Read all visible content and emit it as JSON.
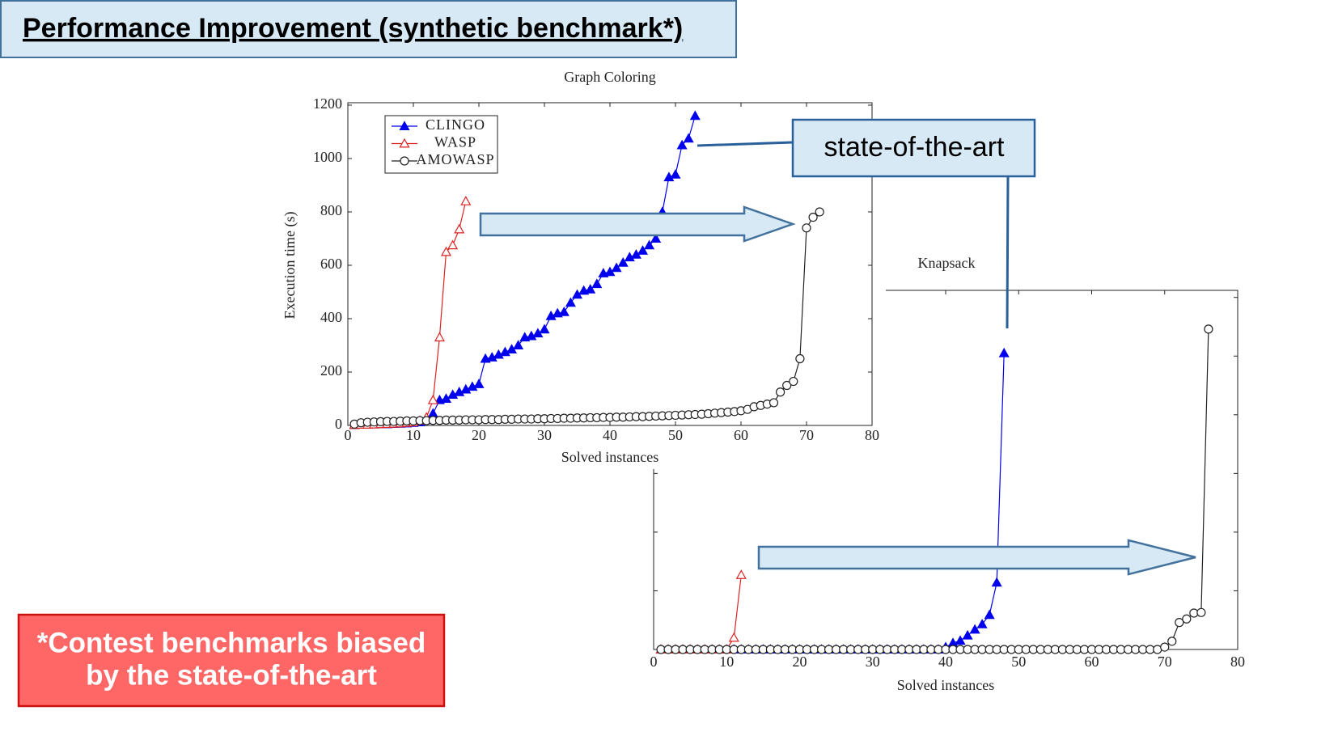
{
  "header": "Performance Improvement (synthetic benchmark*)",
  "callout": "state-of-the-art",
  "note": [
    "*Contest benchmarks biased",
    "by the state-of-the-art"
  ],
  "chart_data": [
    {
      "type": "line",
      "title": "Graph Coloring",
      "xlabel": "Solved instances",
      "ylabel": "Execution time (s)",
      "xlim": [
        0,
        80
      ],
      "xticks": [
        0,
        10,
        20,
        30,
        40,
        50,
        60,
        70,
        80
      ],
      "ylim": [
        0,
        1200
      ],
      "yticks": [
        0,
        200,
        400,
        600,
        800,
        1000,
        1200
      ],
      "legend": "upper left",
      "ytick_labels": true,
      "series": [
        {
          "name": "CLINGO",
          "color": "#0000ee",
          "marker": "triangle-filled",
          "x": [
            1,
            2,
            3,
            4,
            5,
            6,
            7,
            8,
            9,
            10,
            11,
            12,
            13,
            14,
            15,
            16,
            17,
            18,
            19,
            20,
            21,
            22,
            23,
            24,
            25,
            26,
            27,
            28,
            29,
            30,
            31,
            32,
            33,
            34,
            35,
            36,
            37,
            38,
            39,
            40,
            41,
            42,
            43,
            44,
            45,
            46,
            47,
            48,
            49,
            50,
            51,
            52,
            53
          ],
          "values": [
            2,
            3,
            3,
            4,
            5,
            5,
            6,
            7,
            8,
            10,
            12,
            20,
            45,
            95,
            100,
            115,
            125,
            135,
            145,
            155,
            250,
            255,
            265,
            275,
            285,
            300,
            330,
            335,
            345,
            360,
            410,
            420,
            425,
            460,
            490,
            505,
            510,
            530,
            570,
            575,
            590,
            610,
            630,
            640,
            655,
            675,
            700,
            800,
            930,
            940,
            1050,
            1075,
            1160
          ]
        },
        {
          "name": "WASP",
          "color": "#dd2222",
          "marker": "triangle-open",
          "x": [
            1,
            2,
            3,
            4,
            5,
            6,
            7,
            8,
            9,
            10,
            11,
            12,
            13,
            14,
            15,
            16,
            17,
            18
          ],
          "values": [
            2,
            3,
            3,
            4,
            5,
            6,
            7,
            8,
            10,
            12,
            18,
            30,
            95,
            330,
            650,
            675,
            735,
            840
          ]
        },
        {
          "name": "AMOWASP",
          "color": "#222222",
          "marker": "circle-open",
          "x": [
            1,
            2,
            3,
            4,
            5,
            6,
            7,
            8,
            9,
            10,
            11,
            12,
            13,
            14,
            15,
            16,
            17,
            18,
            19,
            20,
            21,
            22,
            23,
            24,
            25,
            26,
            27,
            28,
            29,
            30,
            31,
            32,
            33,
            34,
            35,
            36,
            37,
            38,
            39,
            40,
            41,
            42,
            43,
            44,
            45,
            46,
            47,
            48,
            49,
            50,
            51,
            52,
            53,
            54,
            55,
            56,
            57,
            58,
            59,
            60,
            61,
            62,
            63,
            64,
            65,
            66,
            67,
            68,
            69,
            70,
            71,
            72
          ],
          "values": [
            5,
            10,
            12,
            13,
            14,
            15,
            15,
            16,
            17,
            17,
            18,
            18,
            19,
            19,
            20,
            20,
            20,
            21,
            21,
            21,
            22,
            22,
            22,
            23,
            23,
            24,
            24,
            24,
            25,
            25,
            26,
            26,
            27,
            27,
            28,
            28,
            29,
            29,
            30,
            30,
            31,
            31,
            32,
            33,
            33,
            34,
            35,
            36,
            37,
            38,
            39,
            40,
            41,
            42,
            44,
            46,
            48,
            50,
            52,
            55,
            60,
            70,
            75,
            80,
            85,
            125,
            150,
            165,
            250,
            740,
            780,
            800
          ]
        }
      ]
    },
    {
      "type": "line",
      "title": "Knapsack",
      "xlabel": "Solved instances",
      "xlim": [
        0,
        80
      ],
      "xticks": [
        0,
        10,
        20,
        30,
        40,
        50,
        60,
        70,
        80
      ],
      "ylim": [
        0,
        612
      ],
      "yticks": [
        0,
        100,
        200,
        300,
        400,
        500,
        600
      ],
      "ytick_labels": false,
      "series": [
        {
          "color": "#0000ee",
          "marker": "triangle-filled",
          "x": [
            1,
            2,
            3,
            4,
            5,
            6,
            7,
            8,
            9,
            10,
            11,
            12,
            13,
            14,
            15,
            16,
            17,
            18,
            19,
            20,
            21,
            22,
            23,
            24,
            25,
            26,
            27,
            28,
            29,
            30,
            31,
            32,
            33,
            34,
            35,
            36,
            37,
            38,
            39,
            40,
            41,
            42,
            43,
            44,
            45,
            46,
            47,
            48
          ],
          "values": [
            0,
            0,
            0,
            0,
            0,
            0,
            0,
            0,
            0,
            0,
            0,
            0,
            0,
            0,
            0,
            0,
            0,
            0,
            0,
            0,
            0,
            0,
            0,
            0,
            0,
            0,
            0,
            0,
            0,
            0,
            0,
            0,
            0,
            0,
            0,
            0,
            0,
            0,
            0,
            4,
            11,
            15,
            24,
            34,
            43,
            59,
            114,
            505
          ]
        },
        {
          "color": "#dd2222",
          "marker": "triangle-open",
          "x": [
            1,
            2,
            3,
            4,
            5,
            6,
            7,
            8,
            9,
            10,
            11,
            12
          ],
          "values": [
            0,
            0,
            0,
            0,
            0,
            0,
            0,
            0,
            0,
            0,
            20,
            127
          ]
        },
        {
          "color": "#222222",
          "marker": "circle-open",
          "x": [
            1,
            2,
            3,
            4,
            5,
            6,
            7,
            8,
            9,
            10,
            11,
            12,
            13,
            14,
            15,
            16,
            17,
            18,
            19,
            20,
            21,
            22,
            23,
            24,
            25,
            26,
            27,
            28,
            29,
            30,
            31,
            32,
            33,
            34,
            35,
            36,
            37,
            38,
            39,
            40,
            41,
            42,
            43,
            44,
            45,
            46,
            47,
            48,
            49,
            50,
            51,
            52,
            53,
            54,
            55,
            56,
            57,
            58,
            59,
            60,
            61,
            62,
            63,
            64,
            65,
            66,
            67,
            68,
            69,
            70,
            71,
            72,
            73,
            74,
            75,
            76
          ],
          "values": [
            0,
            0,
            0,
            0,
            0,
            0,
            0,
            0,
            0,
            0,
            0,
            0,
            0,
            0,
            0,
            0,
            0,
            0,
            0,
            0,
            0,
            0,
            0,
            0,
            0,
            0,
            0,
            0,
            0,
            0,
            0,
            0,
            0,
            0,
            0,
            0,
            0,
            0,
            0,
            0,
            0,
            0,
            0,
            0,
            0,
            0,
            0,
            0,
            0,
            0,
            0,
            0,
            0,
            0,
            0,
            0,
            0,
            0,
            0,
            0,
            0,
            0,
            0,
            0,
            0,
            0,
            0,
            0,
            0,
            4,
            14,
            46,
            52,
            62,
            63,
            546
          ]
        }
      ]
    }
  ]
}
